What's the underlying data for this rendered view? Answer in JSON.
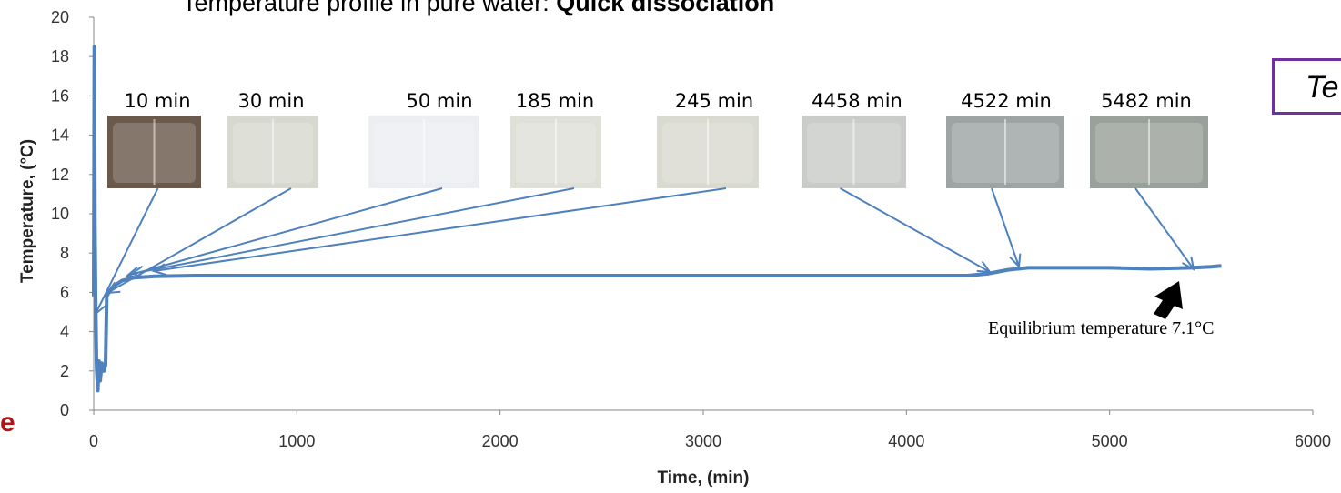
{
  "title": {
    "prefix": "Temperature profile in pure water: ",
    "bold": "Quick dissociation"
  },
  "corner_box_text": "Te",
  "left_fragment": "e",
  "equilibrium_note": "Equilibrium temperature 7.1°C",
  "chart_data": {
    "type": "line",
    "title": "Temperature profile in pure water: Quick dissociation",
    "xlabel": "Time, (min)",
    "ylabel": "Temperature, (°C)",
    "xlim": [
      0,
      6000
    ],
    "ylim": [
      0,
      20
    ],
    "x_ticks": [
      0,
      1000,
      2000,
      3000,
      4000,
      5000,
      6000
    ],
    "y_ticks": [
      0,
      2,
      4,
      6,
      8,
      10,
      12,
      14,
      16,
      18,
      20
    ],
    "grid": false,
    "series": [
      {
        "color": "#4f81bd",
        "points": [
          [
            0,
            5.8
          ],
          [
            3,
            18.5
          ],
          [
            6,
            9.5
          ],
          [
            10,
            5.2
          ],
          [
            14,
            2.2
          ],
          [
            20,
            1.0
          ],
          [
            26,
            2.5
          ],
          [
            32,
            1.5
          ],
          [
            40,
            2.4
          ],
          [
            50,
            2.0
          ],
          [
            58,
            2.3
          ],
          [
            64,
            5.8
          ],
          [
            75,
            6.0
          ],
          [
            90,
            6.2
          ],
          [
            110,
            6.4
          ],
          [
            140,
            6.6
          ],
          [
            200,
            6.75
          ],
          [
            300,
            6.82
          ],
          [
            500,
            6.85
          ],
          [
            1000,
            6.85
          ],
          [
            1500,
            6.85
          ],
          [
            2000,
            6.85
          ],
          [
            2500,
            6.85
          ],
          [
            3000,
            6.85
          ],
          [
            3500,
            6.85
          ],
          [
            4000,
            6.85
          ],
          [
            4300,
            6.85
          ],
          [
            4400,
            6.95
          ],
          [
            4500,
            7.15
          ],
          [
            4600,
            7.25
          ],
          [
            4800,
            7.25
          ],
          [
            5000,
            7.25
          ],
          [
            5200,
            7.2
          ],
          [
            5400,
            7.25
          ],
          [
            5500,
            7.3
          ],
          [
            5550,
            7.35
          ]
        ]
      }
    ],
    "photos": [
      {
        "label": "10 min",
        "time": 10,
        "photo_fill": "#6b5a4c"
      },
      {
        "label": "30 min",
        "time": 30,
        "photo_fill": "#d7d8cf"
      },
      {
        "label": "50 min",
        "time": 50,
        "photo_fill": "#eceef2"
      },
      {
        "label": "185 min",
        "time": 185,
        "photo_fill": "#dfe0d8"
      },
      {
        "label": "245 min",
        "time": 245,
        "photo_fill": "#d9dad0"
      },
      {
        "label": "4458 min",
        "time": 4458,
        "photo_fill": "#c9ccc8"
      },
      {
        "label": "4522 min",
        "time": 4522,
        "photo_fill": "#9ea4a4"
      },
      {
        "label": "5482 min",
        "time": 5482,
        "photo_fill": "#9aa09a"
      }
    ]
  }
}
